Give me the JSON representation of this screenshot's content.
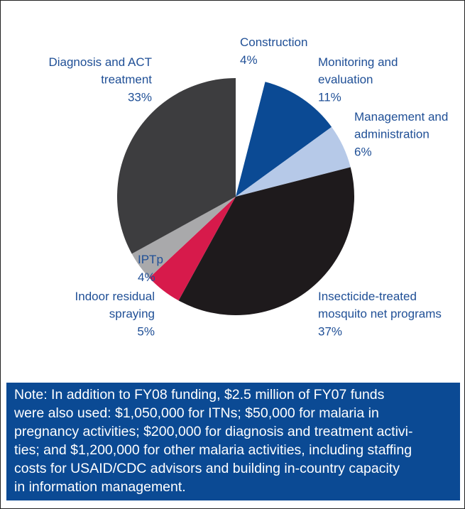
{
  "chart_data": {
    "type": "pie",
    "categories": [
      "Construction",
      "Monitoring and evaluation",
      "Management and administration",
      "Insecticide-treated mosquito net programs",
      "Indoor residual spraying",
      "IPTp",
      "Diagnosis and ACT treatment"
    ],
    "values": [
      4,
      11,
      6,
      37,
      5,
      4,
      33
    ],
    "value_labels": [
      "4%",
      "11%",
      "6%",
      "37%",
      "5%",
      "4%",
      "33%"
    ],
    "colors": [
      "#ffffff",
      "#0b4a94",
      "#b6c9e8",
      "#1e1a1c",
      "#d71a4b",
      "#a9a9ab",
      "#3d3d3f"
    ]
  },
  "note": [
    "Note: In addition to FY08 funding, $2.5 million of FY07 funds",
    "were also used: $1,050,000 for ITNs; $50,000 for malaria in",
    "pregnancy activities; $200,000 for diagnosis and treatment activi-",
    "ties; and $1,200,000 for other malaria activities, including staffing",
    "costs for USAID/CDC advisors and building in-country capacity",
    "in information management."
  ]
}
